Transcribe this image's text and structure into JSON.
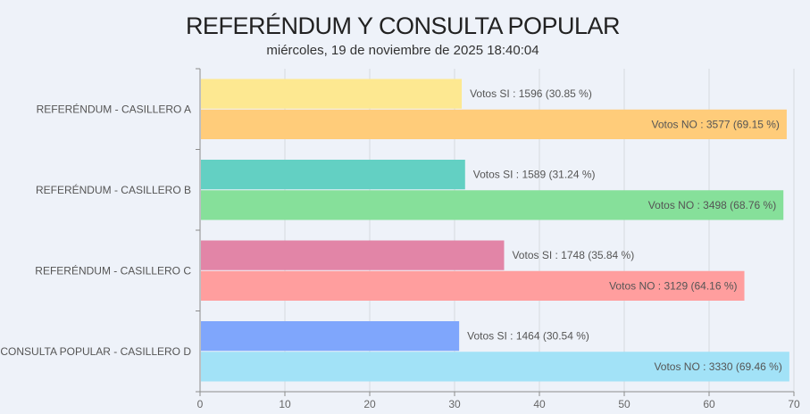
{
  "chart_data": {
    "type": "bar",
    "orientation": "horizontal",
    "title": "REFERÉNDUM Y CONSULTA POPULAR",
    "subtitle": "miércoles, 19 de noviembre de 2025 18:40:04",
    "categories": [
      "REFERÉNDUM - CASILLERO A",
      "REFERÉNDUM - CASILLERO B",
      "REFERÉNDUM - CASILLERO C",
      "CONSULTA POPULAR - CASILLERO D"
    ],
    "xlim": [
      0,
      70
    ],
    "xticks": [
      0,
      10,
      20,
      30,
      40,
      50,
      60,
      70
    ],
    "grid": true,
    "bars": [
      [
        {
          "label": "Votos SI : 1596  (30.85 %)",
          "votes": 1596,
          "percent": 30.85,
          "color": "#fde891"
        },
        {
          "label": "Votos NO : 3577  (69.15 %)",
          "votes": 3577,
          "percent": 69.15,
          "color": "#ffcc7a"
        }
      ],
      [
        {
          "label": "Votos SI : 1589  (31.24 %)",
          "votes": 1589,
          "percent": 31.24,
          "color": "#63d0c3"
        },
        {
          "label": "Votos NO : 3498  (68.76 %)",
          "votes": 3498,
          "percent": 68.76,
          "color": "#86e09a"
        }
      ],
      [
        {
          "label": "Votos SI : 1748  (35.84 %)",
          "votes": 1748,
          "percent": 35.84,
          "color": "#e285a7"
        },
        {
          "label": "Votos NO : 3129  (64.16 %)",
          "votes": 3129,
          "percent": 64.16,
          "color": "#ff9e9e"
        }
      ],
      [
        {
          "label": "Votos SI : 1464  (30.54 %)",
          "votes": 1464,
          "percent": 30.54,
          "color": "#7fa6fc"
        },
        {
          "label": "Votos NO : 3330  (69.46 %)",
          "votes": 3330,
          "percent": 69.46,
          "color": "#a2e2f7"
        }
      ]
    ]
  }
}
